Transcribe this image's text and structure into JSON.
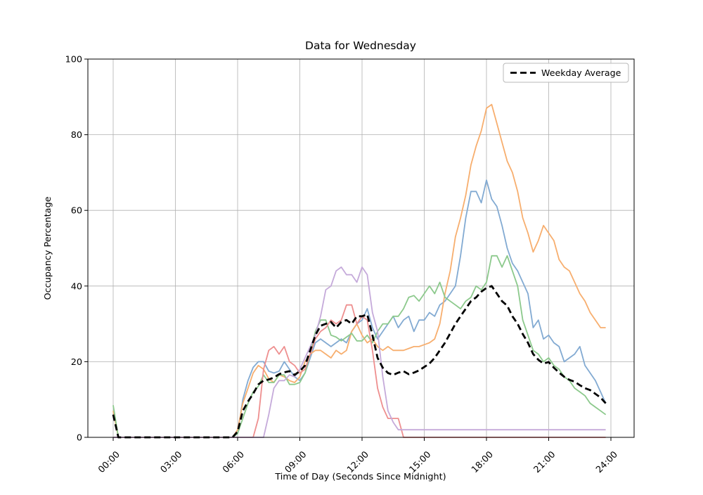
{
  "title": "Data for Wednesday",
  "axes": {
    "xlabel": "Time of Day (Seconds Since Midnight)",
    "ylabel": "Occupancy Percentage",
    "x_tick_labels": [
      "00:00",
      "03:00",
      "06:00",
      "09:00",
      "12:00",
      "15:00",
      "18:00",
      "21:00",
      "24:00"
    ],
    "x_tick_hours": [
      0,
      3,
      6,
      9,
      12,
      15,
      18,
      21,
      24
    ],
    "y_ticks": [
      0,
      20,
      40,
      60,
      80,
      100
    ]
  },
  "legend": {
    "entries": [
      {
        "label": "Weekday Average",
        "color": "#000000",
        "style": "dashed"
      }
    ]
  },
  "colors": {
    "grid": "#b0b0b0",
    "spine": "#000000",
    "background": "#ffffff",
    "series_blue": "#82aad2",
    "series_orange": "#f7ae6e",
    "series_green": "#8cc98c",
    "series_red": "#ee8f8f",
    "series_purple": "#c5aada",
    "average": "#000000"
  },
  "chart_data": {
    "type": "line",
    "title": "Data for Wednesday",
    "xlabel": "Time of Day (Seconds Since Midnight)",
    "ylabel": "Occupancy Percentage",
    "x_unit": "hours",
    "x_start_hour": 0,
    "x_step_hours": 0.25,
    "xlim_hours": [
      -1.2,
      25.2
    ],
    "ylim": [
      0,
      100
    ],
    "grid": true,
    "legend_position": "upper right",
    "x_tick_hours": [
      0,
      3,
      6,
      9,
      12,
      15,
      18,
      21,
      24
    ],
    "x_tick_labels": [
      "00:00",
      "03:00",
      "06:00",
      "09:00",
      "12:00",
      "15:00",
      "18:00",
      "21:00",
      "24:00"
    ],
    "y_ticks": [
      0,
      20,
      40,
      60,
      80,
      100
    ],
    "series": [
      {
        "id": "series-blue",
        "label": null,
        "color": "#82aad2",
        "width": 1.8,
        "dash": null,
        "values": [
          0,
          0,
          0,
          0,
          0,
          0,
          0,
          0,
          0,
          0,
          0,
          0,
          0,
          0,
          0,
          0,
          0,
          0,
          0,
          0,
          0,
          0,
          0,
          0,
          1,
          10,
          15,
          18.5,
          20,
          20,
          17.5,
          17,
          17.5,
          20,
          18,
          16,
          15,
          17,
          21,
          25,
          26,
          25,
          24,
          25,
          26,
          25,
          28,
          30,
          31,
          34,
          29,
          26,
          28,
          30,
          32,
          29,
          31,
          32,
          28,
          31,
          31,
          33,
          32,
          35,
          36,
          38,
          40,
          48,
          58,
          65,
          65,
          62,
          68,
          63,
          61,
          56,
          50,
          46,
          44,
          41,
          38,
          29,
          31,
          26,
          27,
          25,
          24,
          20,
          21,
          22,
          24,
          19,
          17,
          15,
          12,
          9
        ]
      },
      {
        "id": "series-orange",
        "label": null,
        "color": "#f7ae6e",
        "width": 1.8,
        "dash": null,
        "values": [
          7,
          0,
          0,
          0,
          0,
          0,
          0,
          0,
          0,
          0,
          0,
          0,
          0,
          0,
          0,
          0,
          0,
          0,
          0,
          0,
          0,
          0,
          0,
          0,
          2,
          9,
          13,
          17,
          19,
          18,
          15.5,
          14.5,
          16.5,
          16,
          15,
          14.5,
          16,
          20,
          22,
          23,
          23,
          22,
          21,
          23,
          22,
          23,
          28,
          30,
          27,
          25,
          26,
          24,
          23,
          24,
          23,
          23,
          23,
          23.5,
          24,
          24,
          24.5,
          25,
          26,
          30,
          38,
          44,
          53,
          58,
          64,
          72,
          77,
          81,
          87,
          88,
          83,
          78,
          73,
          70,
          65,
          58,
          54,
          49,
          52,
          56,
          54,
          52,
          47,
          45,
          44,
          41,
          38,
          36,
          33,
          31,
          29,
          29
        ]
      },
      {
        "id": "series-green",
        "label": null,
        "color": "#8cc98c",
        "width": 1.8,
        "dash": null,
        "values": [
          8.5,
          0,
          0,
          0,
          0,
          0,
          0,
          0,
          0,
          0,
          0,
          0,
          0,
          0,
          0,
          0,
          0,
          0,
          0,
          0,
          0,
          0,
          0,
          0,
          1,
          5,
          9,
          12,
          13.5,
          16.5,
          14.5,
          14.5,
          16.5,
          16.5,
          14,
          14,
          14.5,
          17,
          22,
          28,
          31,
          31,
          27,
          26.5,
          25.5,
          26.5,
          27.5,
          25.5,
          25.5,
          27,
          25,
          28,
          30,
          30,
          32,
          32,
          34,
          37,
          37.5,
          36,
          38,
          40,
          38,
          41,
          37,
          36,
          35,
          34,
          36,
          37,
          40,
          39,
          41,
          48,
          48,
          45,
          48,
          44,
          40,
          31,
          27,
          23,
          22,
          20,
          21,
          19,
          18,
          16,
          15,
          13,
          12,
          11,
          9,
          8,
          7,
          6
        ]
      },
      {
        "id": "series-red",
        "label": null,
        "color": "#ee8f8f",
        "width": 1.8,
        "dash": null,
        "values": [
          0,
          0,
          0,
          0,
          0,
          0,
          0,
          0,
          0,
          0,
          0,
          0,
          0,
          0,
          0,
          0,
          0,
          0,
          0,
          0,
          0,
          0,
          0,
          0,
          0,
          0,
          0,
          0,
          5,
          18,
          23,
          24,
          22,
          24,
          20,
          19,
          17,
          18,
          22,
          26,
          28,
          29,
          31,
          30,
          31,
          35,
          35,
          30,
          32,
          31,
          23,
          13,
          8,
          5,
          5,
          5,
          0,
          0,
          0,
          0,
          0,
          0,
          0,
          0,
          0,
          0,
          0,
          0,
          0,
          0,
          0,
          0,
          0,
          0,
          0,
          0,
          0,
          0,
          0,
          0,
          0,
          0,
          0,
          0,
          0,
          0,
          0,
          0,
          0,
          0,
          0,
          0,
          0,
          0,
          0,
          0
        ]
      },
      {
        "id": "series-purple",
        "label": null,
        "color": "#c5aada",
        "width": 1.8,
        "dash": null,
        "values": [
          0,
          0,
          0,
          0,
          0,
          0,
          0,
          0,
          0,
          0,
          0,
          0,
          0,
          0,
          0,
          0,
          0,
          0,
          0,
          0,
          0,
          0,
          0,
          0,
          0,
          0,
          0,
          0,
          0,
          0,
          6,
          13,
          15,
          15,
          16.5,
          16,
          18,
          21,
          24,
          27,
          32,
          39,
          40,
          44,
          45,
          43,
          43,
          41,
          45,
          43,
          33,
          28,
          16,
          7,
          4,
          2,
          2,
          2,
          2,
          2,
          2,
          2,
          2,
          2,
          2,
          2,
          2,
          2,
          2,
          2,
          2,
          2,
          2,
          2,
          2,
          2,
          2,
          2,
          2,
          2,
          2,
          2,
          2,
          2,
          2,
          2,
          2,
          2,
          2,
          2,
          2,
          2,
          2,
          2,
          2,
          2
        ]
      },
      {
        "id": "weekday-average",
        "label": "Weekday Average",
        "color": "#000000",
        "width": 2.8,
        "dash": [
          9,
          5
        ],
        "values": [
          6,
          0,
          0,
          0,
          0,
          0,
          0,
          0,
          0,
          0,
          0,
          0,
          0,
          0,
          0,
          0,
          0,
          0,
          0,
          0,
          0,
          0,
          0,
          0,
          1.5,
          7,
          9.5,
          11.5,
          14,
          15,
          15.3,
          15.8,
          16.7,
          17.2,
          17.5,
          16.5,
          17.5,
          19,
          23,
          27,
          29.5,
          30,
          30.5,
          29,
          30.5,
          31,
          30,
          32,
          32,
          32.5,
          27,
          21,
          18.4,
          17,
          16.5,
          17.1,
          17.5,
          16.7,
          17.1,
          17.7,
          18.6,
          19.5,
          21,
          23,
          25,
          27.5,
          30,
          32,
          34,
          36,
          37,
          38.5,
          39.5,
          40,
          38,
          36,
          34.8,
          32,
          30,
          27.3,
          25,
          22,
          20.5,
          19.5,
          19.9,
          18.4,
          17.1,
          16,
          15.2,
          14.7,
          13.8,
          13,
          12.5,
          11.5,
          10.5,
          9
        ]
      }
    ]
  }
}
